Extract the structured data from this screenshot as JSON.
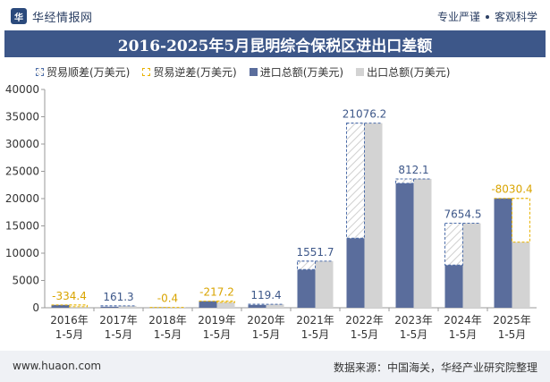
{
  "header": {
    "brand": "华经情报网",
    "brand_logo_text": "华",
    "slogan_left": "专业严谨",
    "slogan_right": "客观科学"
  },
  "title": "2016-2025年5月昆明综合保税区进出口差额",
  "legend": {
    "surplus": "贸易顺差(万美元)",
    "deficit": "贸易逆差(万美元)",
    "import": "进口总额(万美元)",
    "export": "出口总额(万美元)"
  },
  "colors": {
    "import": "#5a6d9c",
    "export": "#d3d3d3",
    "surplus_border": "#4d6eaa",
    "deficit_border": "#e8b200",
    "deficit_label": "#d9a400",
    "surplus_label": "#3d5789"
  },
  "chart_data": {
    "type": "bar",
    "title": "2016-2025年5月昆明综合保税区进出口差额",
    "categories": [
      "2016年\n1-5月",
      "2017年\n1-5月",
      "2018年\n1-5月",
      "2019年\n1-5月",
      "2020年\n1-5月",
      "2021年\n1-5月",
      "2022年\n1-5月",
      "2023年\n1-5月",
      "2024年\n1-5月",
      "2025年\n1-5月"
    ],
    "category_year": [
      "2016年",
      "2017年",
      "2018年",
      "2019年",
      "2020年",
      "2021年",
      "2022年",
      "2023年",
      "2024年",
      "2025年"
    ],
    "category_period": [
      "1-5月",
      "1-5月",
      "1-5月",
      "1-5月",
      "1-5月",
      "1-5月",
      "1-5月",
      "1-5月",
      "1-5月",
      "1-5月"
    ],
    "series": [
      {
        "name": "进口总额(万美元)",
        "values": [
          520,
          180,
          60,
          1210,
          520,
          7000,
          12750,
          22800,
          7830,
          20050
        ]
      },
      {
        "name": "出口总额(万美元)",
        "values": [
          186,
          341,
          60,
          993,
          639,
          8552,
          33826,
          23612,
          15485,
          12020
        ]
      }
    ],
    "balance_labels": [
      "-334.4",
      "161.3",
      "-0.4",
      "-217.2",
      "119.4",
      "1551.7",
      "21076.2",
      "812.1",
      "7654.5",
      "-8030.4"
    ],
    "balance_values": [
      -334.4,
      161.3,
      -0.4,
      -217.2,
      119.4,
      1551.7,
      21076.2,
      812.1,
      7654.5,
      -8030.4
    ],
    "ylim": [
      0,
      40000
    ],
    "yticks": [
      0,
      5000,
      10000,
      15000,
      20000,
      25000,
      30000,
      35000,
      40000
    ],
    "ytick_labels": [
      "0",
      "5000",
      "10000",
      "15000",
      "20000",
      "25000",
      "30000",
      "35000",
      "40000"
    ]
  },
  "footer": {
    "website": "www.huaon.com",
    "source": "数据来源：中国海关，华经产业研究院整理"
  }
}
